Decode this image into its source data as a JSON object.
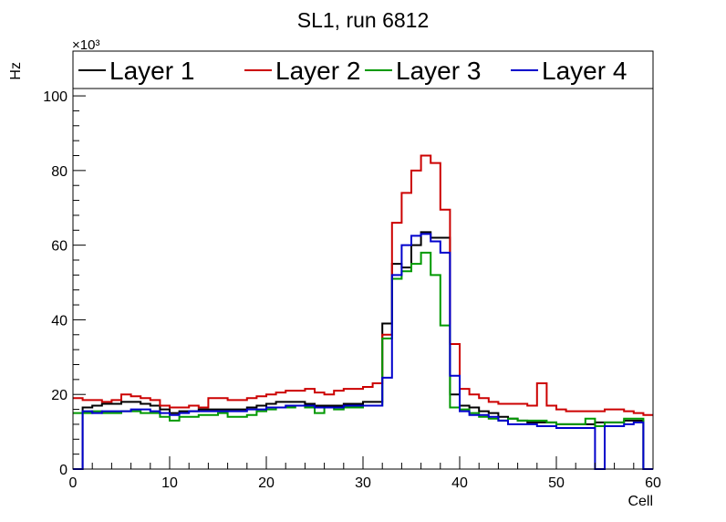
{
  "chart_data": {
    "type": "line",
    "title": "SL1, run 6812",
    "xlabel": "Cell",
    "ylabel": "Hz",
    "y_multiplier": "×10³",
    "xlim": [
      0,
      60
    ],
    "ylim": [
      0,
      112
    ],
    "x_ticks": [
      0,
      10,
      20,
      30,
      40,
      50,
      60
    ],
    "y_ticks": [
      0,
      20,
      40,
      60,
      80,
      100
    ],
    "grid": false,
    "legend": "top",
    "bins": [
      0,
      1,
      2,
      3,
      4,
      5,
      6,
      7,
      8,
      9,
      10,
      11,
      12,
      13,
      14,
      15,
      16,
      17,
      18,
      19,
      20,
      21,
      22,
      23,
      24,
      25,
      26,
      27,
      28,
      29,
      30,
      31,
      32,
      33,
      34,
      35,
      36,
      37,
      38,
      39,
      40,
      41,
      42,
      43,
      44,
      45,
      46,
      47,
      48,
      49,
      50,
      51,
      52,
      53,
      54,
      55,
      56,
      57,
      58,
      59
    ],
    "series": [
      {
        "name": "Layer 1",
        "color": "#000000",
        "values": [
          0,
          16.5,
          17,
          17.5,
          17.5,
          18,
          18,
          17.5,
          17,
          16,
          15,
          15.5,
          15.5,
          16,
          16,
          16,
          16,
          16,
          16.5,
          17,
          17.5,
          18,
          18,
          18,
          17.5,
          17,
          17,
          17,
          17.5,
          17.5,
          18,
          18,
          39,
          55,
          54,
          60,
          63.5,
          62,
          62,
          20,
          17,
          16.5,
          15.5,
          15,
          14,
          13.5,
          13,
          12.5,
          12.5,
          12.5,
          12,
          12,
          12,
          12,
          12.5,
          12.5,
          12.5,
          13,
          13,
          0
        ]
      },
      {
        "name": "Layer 2",
        "color": "#cc0000",
        "values": [
          19,
          18.5,
          18.5,
          18,
          18.5,
          20,
          19.5,
          19,
          18.5,
          17,
          16.5,
          16.5,
          17,
          16.5,
          19,
          19,
          18.5,
          18.5,
          19,
          19.5,
          20,
          20.5,
          21,
          21,
          21.5,
          20.5,
          20,
          21,
          21.5,
          21.5,
          22,
          23,
          36,
          66,
          74,
          80,
          84,
          82,
          69.5,
          33.5,
          21.5,
          20,
          19,
          18,
          17.5,
          17.5,
          17.5,
          17,
          23,
          17,
          16,
          15.5,
          15.5,
          15.5,
          15.5,
          16,
          16,
          15.5,
          15,
          14.5
        ]
      },
      {
        "name": "Layer 3",
        "color": "#009900",
        "values": [
          15,
          15,
          15.5,
          15,
          15,
          15.5,
          15.5,
          15,
          15,
          14,
          13,
          14,
          14,
          14.5,
          14.5,
          15,
          14,
          14,
          14.5,
          15.5,
          16,
          16.5,
          16.5,
          17,
          16.5,
          15,
          16.5,
          16,
          16.5,
          16.5,
          17,
          17,
          35,
          51,
          53,
          55,
          58,
          52,
          38.5,
          16.5,
          16,
          15,
          14,
          13.5,
          13,
          13.5,
          13,
          13,
          13,
          12.5,
          12,
          12,
          12,
          13.5,
          11.5,
          12.5,
          12.5,
          13.5,
          13.5,
          0
        ]
      },
      {
        "name": "Layer 4",
        "color": "#0000cc",
        "values": [
          0,
          15.5,
          15,
          15.5,
          15.5,
          15.5,
          16,
          16,
          15.5,
          15,
          14.5,
          15,
          15.5,
          15.5,
          15.5,
          15.5,
          15.5,
          15.5,
          16,
          16,
          16.5,
          16.5,
          17,
          17,
          17,
          16.5,
          16.5,
          16.5,
          17,
          17,
          17,
          17,
          24.5,
          52,
          60,
          62.5,
          63,
          61,
          58,
          25,
          15.5,
          14.5,
          14.5,
          14,
          13,
          12,
          12,
          12,
          11.5,
          11.5,
          11,
          11,
          11,
          11,
          0,
          11.5,
          11.5,
          12,
          12.5,
          0
        ]
      }
    ]
  }
}
